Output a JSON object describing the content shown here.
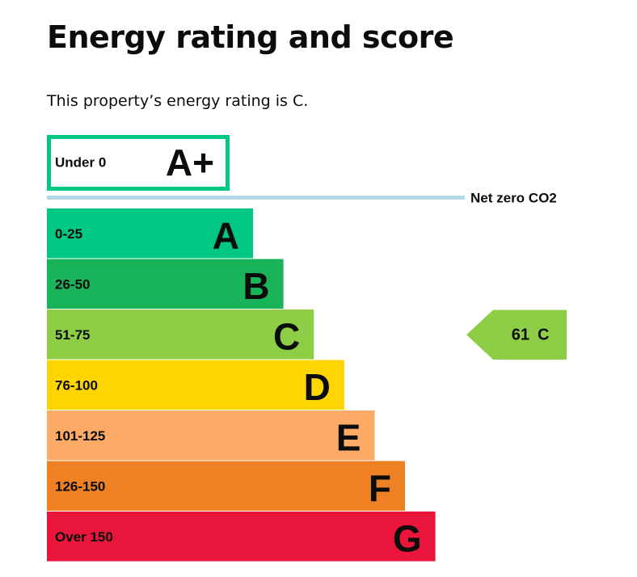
{
  "page": {
    "title": "Energy rating and score",
    "intro": "This property’s energy rating is C."
  },
  "chart_data": {
    "type": "bar",
    "bands": [
      {
        "letter": "A+",
        "range": "Under 0",
        "color": "#ffffff",
        "border": "#00c781"
      },
      {
        "letter": "A",
        "range": "0-25",
        "color": "#00c781"
      },
      {
        "letter": "B",
        "range": "26-50",
        "color": "#19b459"
      },
      {
        "letter": "C",
        "range": "51-75",
        "color": "#8dce46"
      },
      {
        "letter": "D",
        "range": "76-100",
        "color": "#ffd500"
      },
      {
        "letter": "E",
        "range": "101-125",
        "color": "#fcaa65"
      },
      {
        "letter": "F",
        "range": "126-150",
        "color": "#ef8023"
      },
      {
        "letter": "G",
        "range": "Over 150",
        "color": "#e9153b"
      }
    ],
    "net_zero_label": "Net zero CO2",
    "net_zero_color": "#b1d9e8",
    "current": {
      "score": 61,
      "rating": "C",
      "color": "#8dce46"
    }
  }
}
